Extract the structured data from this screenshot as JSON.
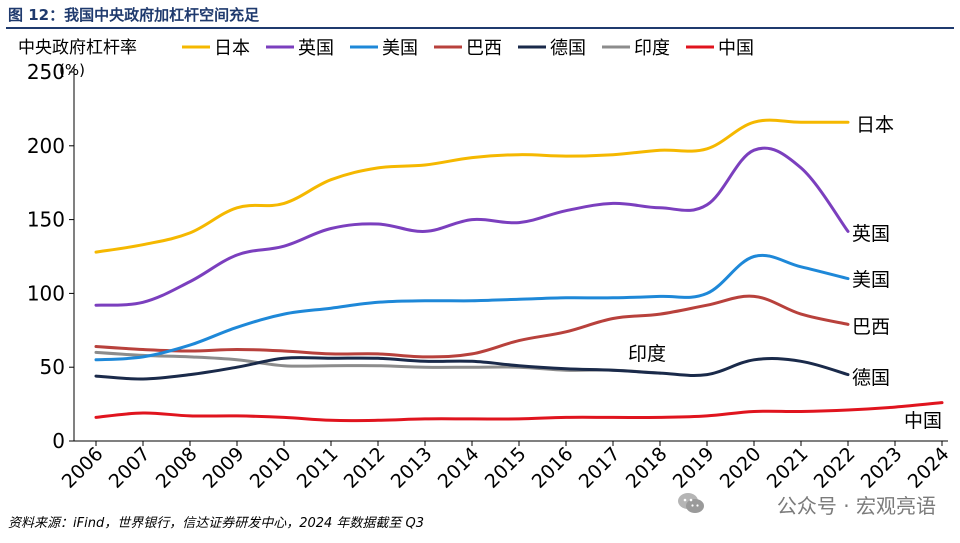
{
  "figure": {
    "title": "图 12：我国中央政府加杠杆空间充足",
    "source": "资料来源：iFind，世界银行，信达证券研发中心，2024 年数据截至 Q3",
    "watermark": "公众号 · 宏观亮语",
    "watermark_icon": "wechat-icon"
  },
  "chart_data": {
    "type": "line",
    "ylabel": "中央政府杠杆率",
    "yunit": "(%)",
    "ylim": [
      0,
      250
    ],
    "yticks": [
      0,
      50,
      100,
      150,
      200,
      250
    ],
    "grid": false,
    "legend_position": "top",
    "categories": [
      "2006",
      "2007",
      "2008",
      "2009",
      "2010",
      "2011",
      "2012",
      "2013",
      "2014",
      "2015",
      "2016",
      "2017",
      "2018",
      "2019",
      "2020",
      "2021",
      "2022",
      "2023",
      "2024"
    ],
    "series": [
      {
        "name": "日本",
        "color": "#f5b800",
        "end_label": "日本",
        "values": [
          128,
          133,
          141,
          158,
          161,
          177,
          185,
          187,
          192,
          194,
          193,
          194,
          197,
          198,
          216,
          216,
          216,
          null,
          null
        ]
      },
      {
        "name": "英国",
        "color": "#7b3fbe",
        "end_label": "英国",
        "values": [
          92,
          94,
          108,
          126,
          132,
          144,
          147,
          142,
          150,
          148,
          156,
          161,
          158,
          160,
          197,
          185,
          142,
          null,
          null
        ]
      },
      {
        "name": "美国",
        "color": "#1e88d8",
        "end_label": "美国",
        "values": [
          55,
          57,
          65,
          77,
          86,
          90,
          94,
          95,
          95,
          96,
          97,
          97,
          98,
          100,
          125,
          118,
          110,
          null,
          null
        ]
      },
      {
        "name": "巴西",
        "color": "#b8413c",
        "end_label": "巴西",
        "values": [
          64,
          62,
          61,
          62,
          61,
          59,
          59,
          57,
          59,
          68,
          74,
          83,
          86,
          92,
          98,
          86,
          79,
          null,
          null
        ]
      },
      {
        "name": "德国",
        "color": "#1a2a4a",
        "end_label": "德国",
        "values": [
          44,
          42,
          45,
          50,
          56,
          56,
          56,
          54,
          54,
          51,
          49,
          48,
          46,
          45,
          55,
          54,
          45,
          null,
          null
        ]
      },
      {
        "name": "印度",
        "color": "#8c8c8c",
        "end_label": "印度",
        "values": [
          60,
          58,
          57,
          55,
          51,
          51,
          51,
          50,
          50,
          50,
          48,
          48,
          46,
          null,
          null,
          null,
          null,
          null,
          null
        ]
      },
      {
        "name": "中国",
        "color": "#e0141e",
        "end_label": "中国",
        "values": [
          16,
          19,
          17,
          17,
          16,
          14,
          14,
          15,
          15,
          15,
          16,
          16,
          16,
          17,
          20,
          20,
          21,
          23,
          26
        ]
      }
    ]
  }
}
